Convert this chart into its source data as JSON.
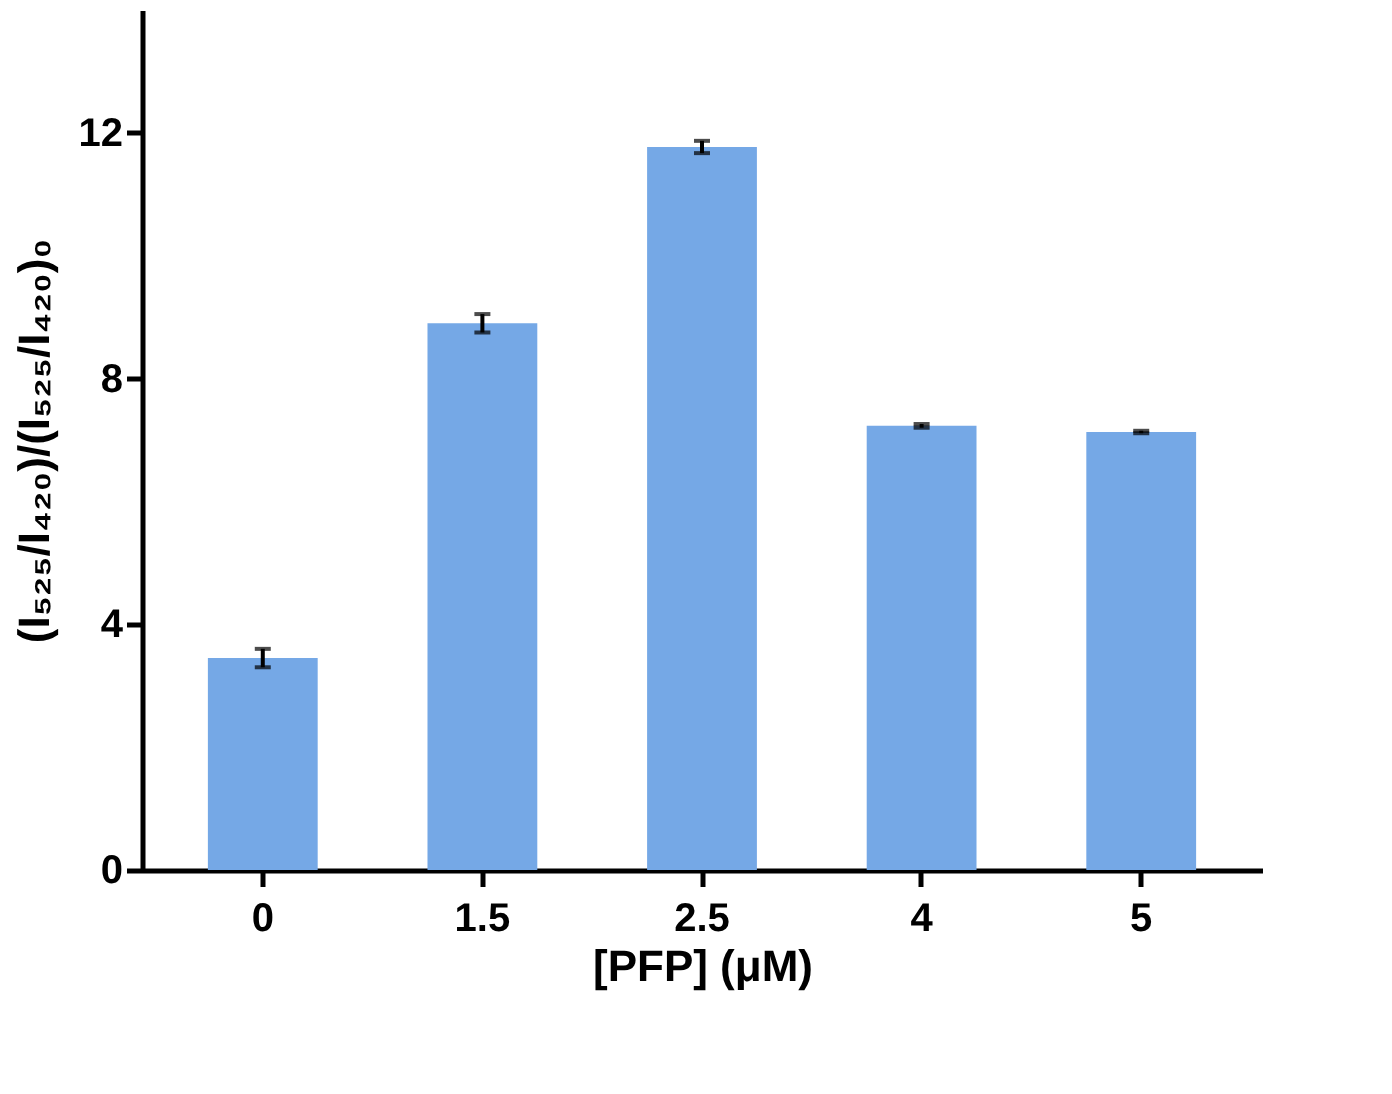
{
  "chart_data": {
    "type": "bar",
    "xlabel": "[PFP] (μM)",
    "ylabel": "(I₅₂₅/I₄₂₀)/(I₅₂₅/I₄₂₀)₀",
    "categories": [
      "0",
      "1.5",
      "2.5",
      "4",
      "5"
    ],
    "values": [
      3.45,
      8.9,
      11.77,
      7.23,
      7.13
    ],
    "errors": [
      0.15,
      0.15,
      0.1,
      0.03,
      0.02
    ],
    "color": "#75a8e6",
    "ylim": [
      0,
      14
    ],
    "yticks": [
      0,
      4,
      8,
      12
    ],
    "grid": false
  }
}
